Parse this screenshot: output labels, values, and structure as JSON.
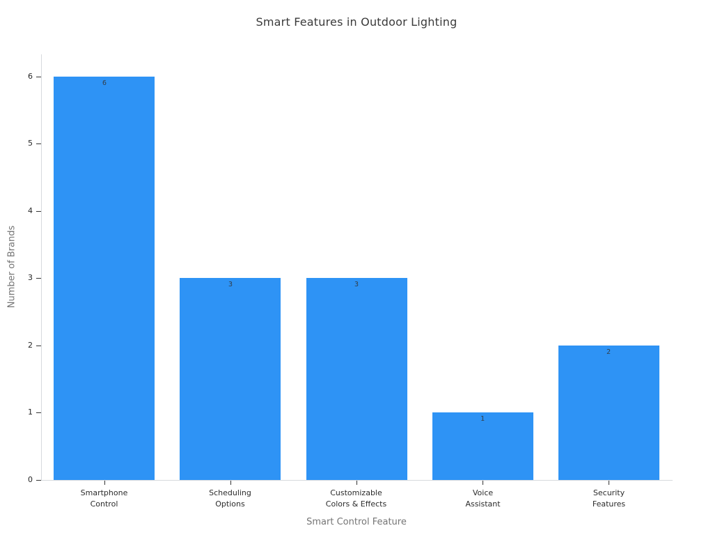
{
  "chart_data": {
    "type": "bar",
    "title": "Smart Features in Outdoor Lighting",
    "xlabel": "Smart Control Feature",
    "ylabel": "Number of Brands",
    "categories": [
      "Smartphone\nControl",
      "Scheduling\nOptions",
      "Customizable\nColors & Effects",
      "Voice\nAssistant",
      "Security\nFeatures"
    ],
    "values": [
      6,
      3,
      3,
      1,
      2
    ],
    "value_labels": [
      "6",
      "3",
      "3",
      "1",
      "2"
    ],
    "yticks": [
      0,
      1,
      2,
      3,
      4,
      5,
      6
    ],
    "ylim": [
      0,
      6.33
    ],
    "grid": false,
    "legend": null,
    "bar_color": "#2e93f5",
    "colors": {
      "background": "#ffffff",
      "spine": "#d6d9dd",
      "tick_mark": "#333333",
      "tick_text": "#262626",
      "axis_title_text": "#757575",
      "title_text": "#3a3a3a",
      "value_label_text": "#333d47"
    }
  }
}
